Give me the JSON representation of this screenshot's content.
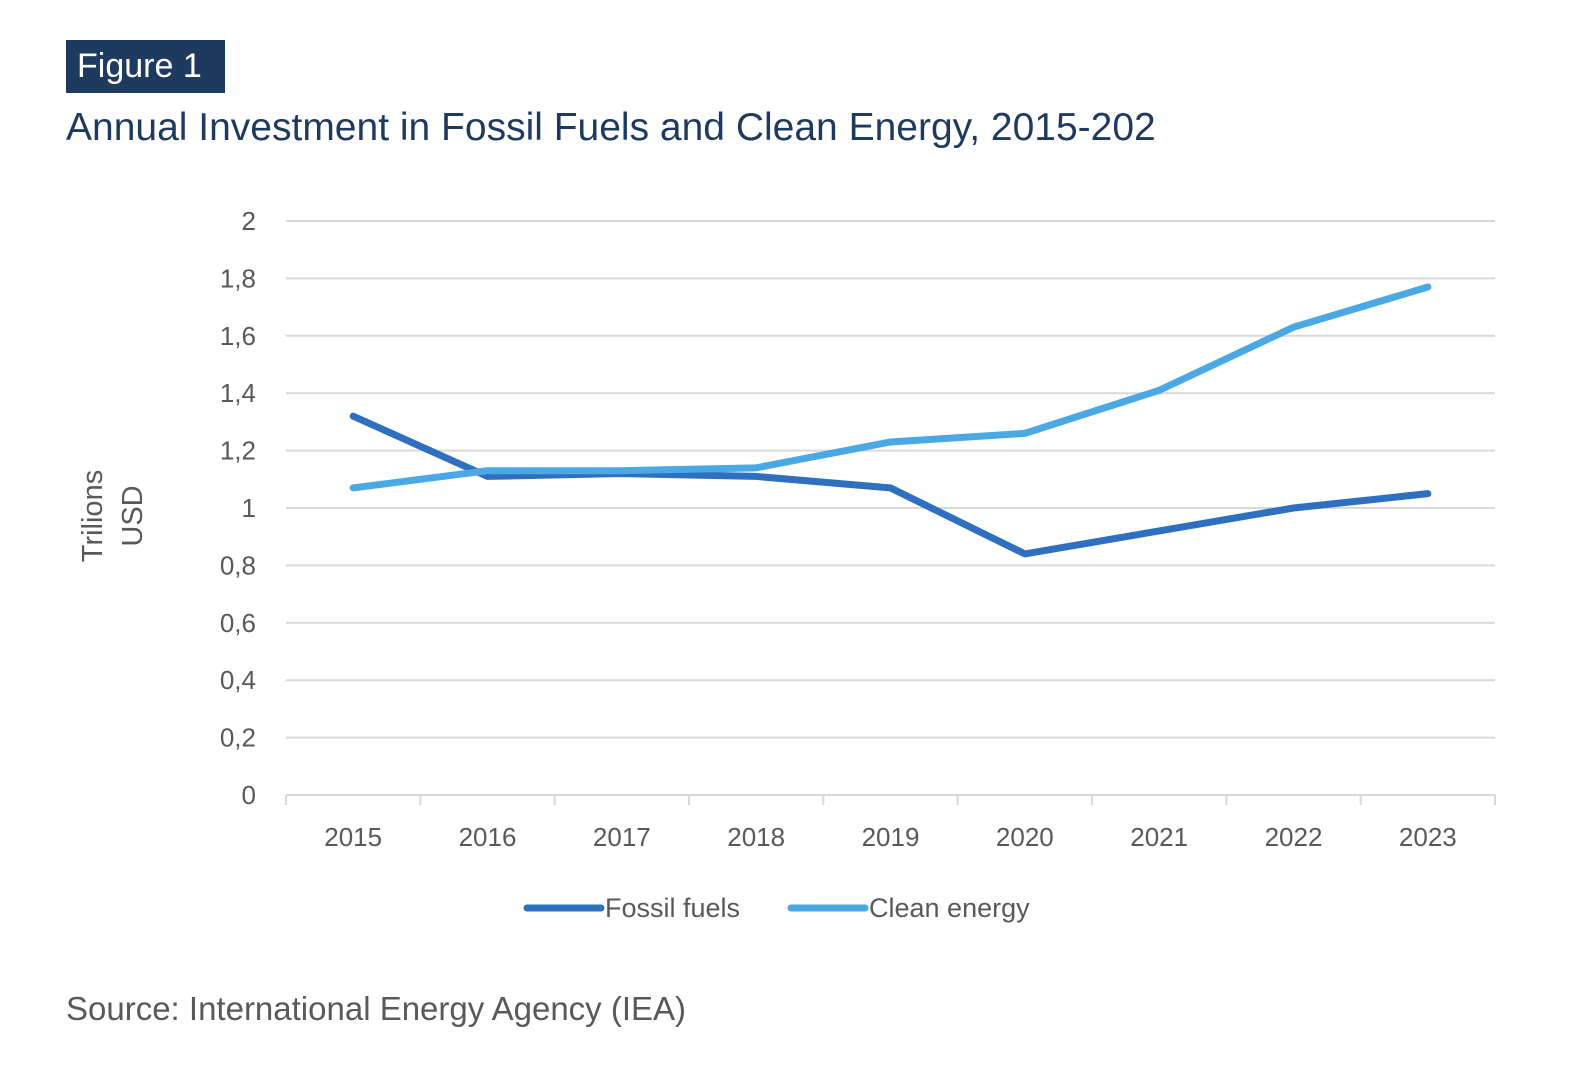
{
  "figure_label": "Figure 1",
  "source": "Source: International Energy Agency (IEA)",
  "colors": {
    "badge_bg": "#1f3a5f",
    "title": "#1f3a5f",
    "fossil": "#2e6fbf",
    "clean": "#4aa8e4",
    "grid": "#d9d9d9",
    "axis_text": "#595959"
  },
  "chart_data": {
    "type": "line",
    "title": "Annual Investment in Fossil Fuels and Clean Energy, 2015-202",
    "xlabel": "",
    "ylabel_lines": [
      "Trilions",
      "USD"
    ],
    "categories": [
      "2015",
      "2016",
      "2017",
      "2018",
      "2019",
      "2020",
      "2021",
      "2022",
      "2023"
    ],
    "ylim": [
      0,
      2
    ],
    "yticks": [
      0,
      0.2,
      0.4,
      0.6,
      0.8,
      1,
      1.2,
      1.4,
      1.6,
      1.8,
      2
    ],
    "ytick_labels": [
      "0",
      "0,2",
      "0,4",
      "0,6",
      "0,8",
      "1",
      "1,2",
      "1,4",
      "1,6",
      "1,8",
      "2"
    ],
    "grid": true,
    "legend": "bottom",
    "series": [
      {
        "name": "Fossil fuels",
        "values": [
          1.32,
          1.11,
          1.12,
          1.11,
          1.07,
          0.84,
          0.92,
          1.0,
          1.05
        ]
      },
      {
        "name": "Clean energy",
        "values": [
          1.07,
          1.13,
          1.13,
          1.14,
          1.23,
          1.26,
          1.41,
          1.63,
          1.77
        ]
      }
    ]
  }
}
